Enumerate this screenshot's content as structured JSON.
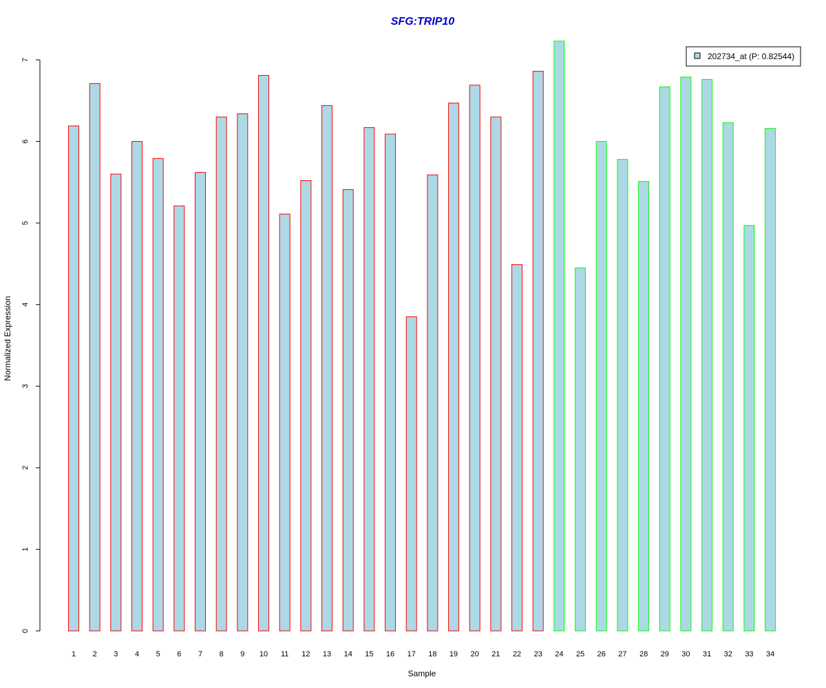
{
  "chart_data": {
    "type": "bar",
    "title": "SFG:TRIP10",
    "xlabel": "Sample",
    "ylabel": "Normalized Expression",
    "ylim": [
      0,
      7
    ],
    "yticks": [
      0,
      1,
      2,
      3,
      4,
      5,
      6,
      7
    ],
    "grid": false,
    "legend_position": "top-right",
    "categories": [
      "1",
      "2",
      "3",
      "4",
      "5",
      "6",
      "7",
      "8",
      "9",
      "10",
      "11",
      "12",
      "13",
      "14",
      "15",
      "16",
      "17",
      "18",
      "19",
      "20",
      "21",
      "22",
      "23",
      "24",
      "25",
      "26",
      "27",
      "28",
      "29",
      "30",
      "31",
      "32",
      "33",
      "34"
    ],
    "series": [
      {
        "name": "202734_at (P: 0.82544)",
        "values": [
          6.19,
          6.71,
          5.6,
          6.0,
          5.79,
          5.21,
          5.62,
          6.3,
          6.34,
          6.81,
          5.11,
          5.52,
          6.44,
          5.41,
          6.17,
          6.09,
          3.85,
          5.59,
          6.47,
          6.69,
          6.3,
          4.49,
          6.86,
          7.23,
          4.45,
          6.0,
          5.78,
          5.51,
          6.67,
          6.79,
          6.76,
          6.23,
          4.97,
          6.16
        ]
      }
    ],
    "groups": [
      {
        "samples": "1-23",
        "border_color": "#ff0000"
      },
      {
        "samples": "24-34",
        "border_color": "#00ff00"
      }
    ],
    "group_of_sample": [
      0,
      0,
      0,
      0,
      0,
      0,
      0,
      0,
      0,
      0,
      0,
      0,
      0,
      0,
      0,
      0,
      0,
      0,
      0,
      0,
      0,
      0,
      0,
      1,
      1,
      1,
      1,
      1,
      1,
      1,
      1,
      1,
      1,
      1
    ],
    "colors": {
      "bar_fill": "#add8e6",
      "title": "#0000cc",
      "axis": "#000000"
    }
  }
}
